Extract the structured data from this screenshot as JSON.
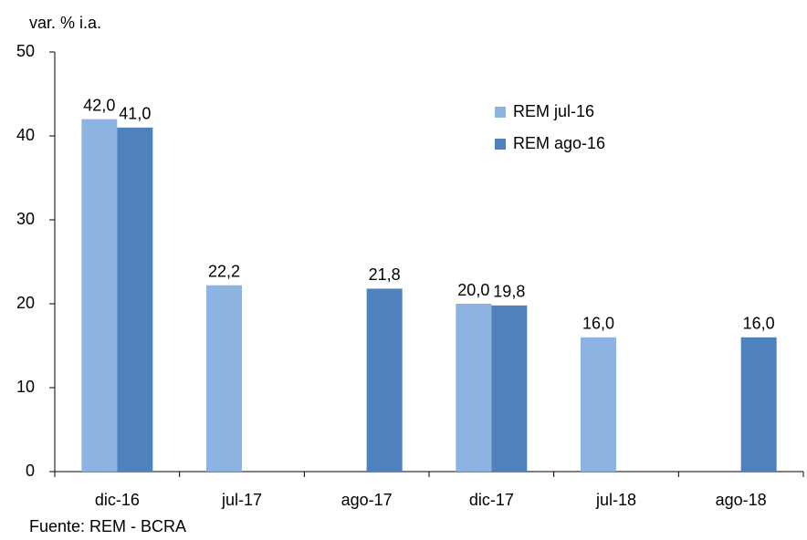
{
  "chart_data": {
    "type": "bar",
    "y_label": "var. % i.a.",
    "source": "Fuente: REM - BCRA",
    "categories": [
      "dic-16",
      "jul-17",
      "ago-17",
      "dic-17",
      "jul-18",
      "ago-18"
    ],
    "series": [
      {
        "name": "REM jul-16",
        "color": "#8db3e2",
        "values": [
          42.0,
          22.2,
          null,
          20.0,
          16.0,
          null
        ],
        "value_labels": [
          "42,0",
          "22,2",
          null,
          "20,0",
          "16,0",
          null
        ]
      },
      {
        "name": "REM ago-16",
        "color": "#4f81bd",
        "values": [
          41.0,
          null,
          21.8,
          19.8,
          null,
          16.0
        ],
        "value_labels": [
          "41,0",
          null,
          "21,8",
          "19,8",
          null,
          "16,0"
        ]
      }
    ],
    "ylim": [
      0,
      50
    ],
    "yticks": [
      0,
      10,
      20,
      30,
      40,
      50
    ],
    "grid": false,
    "legend": "top-right"
  }
}
